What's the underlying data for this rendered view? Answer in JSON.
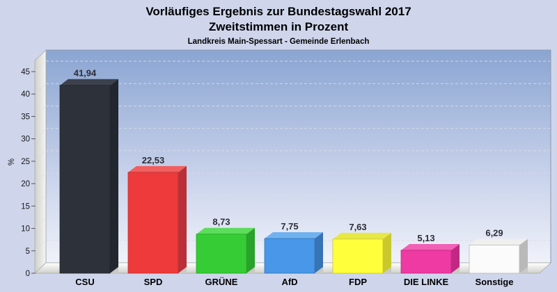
{
  "header": {
    "title_line1": "Vorläufiges Ergebnis zur Bundestagswahl 2017",
    "title_line2": "Zweitstimmen in Prozent",
    "subtitle": "Landkreis Main-Spessart - Gemeinde Erlenbach"
  },
  "chart_data": {
    "type": "bar",
    "style": "3d-column",
    "title": "Vorläufiges Ergebnis zur Bundestagswahl 2017 — Zweitstimmen in Prozent",
    "subtitle": "Landkreis Main-Spessart - Gemeinde Erlenbach",
    "categories": [
      "CSU",
      "SPD",
      "GRÜNE",
      "AfD",
      "FDP",
      "DIE LINKE",
      "Sonstige"
    ],
    "values": [
      41.94,
      22.53,
      8.73,
      7.75,
      7.63,
      5.13,
      6.29
    ],
    "value_labels": [
      "41,94",
      "22,53",
      "8,73",
      "7,75",
      "7,63",
      "5,13",
      "6,29"
    ],
    "xlabel": "",
    "ylabel": "%",
    "y_ticks": [
      0,
      5,
      10,
      15,
      20,
      25,
      30,
      35,
      40,
      45
    ],
    "ylim": [
      0,
      47.5
    ],
    "grid": "dashed-horizontal-every-5",
    "legend": "none",
    "bar_colors": [
      {
        "party": "CSU",
        "front": "#2d313a",
        "top": "#3c414d",
        "side": "#22262e"
      },
      {
        "party": "SPD",
        "front": "#ee3a3a",
        "top": "#f15f5f",
        "side": "#b93038"
      },
      {
        "party": "GRÜNE",
        "front": "#35cc35",
        "top": "#5cdd5c",
        "side": "#29a329"
      },
      {
        "party": "AfD",
        "front": "#4897e8",
        "top": "#70b2f0",
        "side": "#3674b6"
      },
      {
        "party": "FDP",
        "front": "#ffff3c",
        "top": "#e8e845",
        "side": "#c9c92e"
      },
      {
        "party": "DIE LINKE",
        "front": "#ee3aa2",
        "top": "#f260b6",
        "side": "#c02884"
      },
      {
        "party": "Sonstige",
        "front": "#fbfbfb",
        "top": "#efefed",
        "side": "#b9b9b9"
      }
    ],
    "colors_misc": {
      "page_background": "#cfd6ec",
      "plot_gradient_top": "#8aa5d2",
      "plot_gradient_bottom": "#f0f2fa",
      "gridline": "#dcdce2",
      "value_label_color": "#2d2d38",
      "tick_label_color": "#151515",
      "category_label_color": "#000000"
    }
  }
}
